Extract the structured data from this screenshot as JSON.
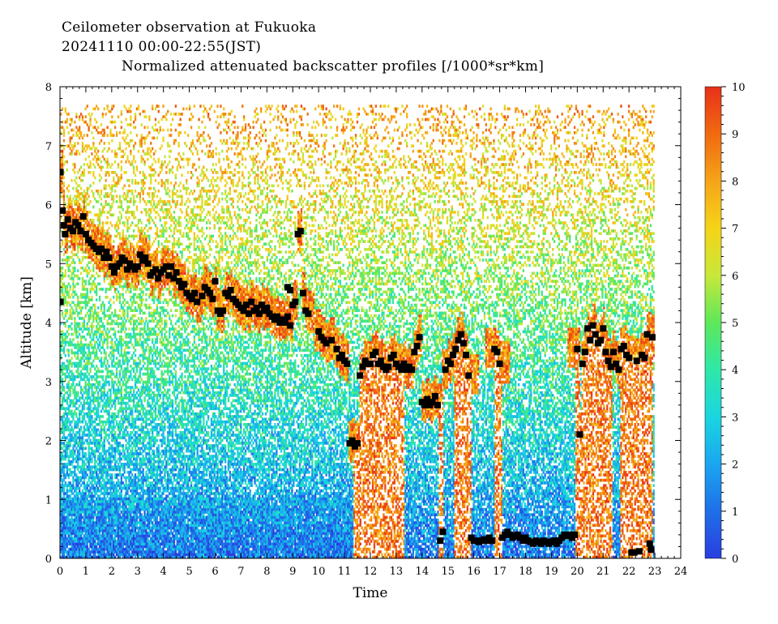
{
  "header": {
    "line1": "Ceilometer observation at Fukuoka",
    "line2": "20241110  00:00-22:55(JST)",
    "title": "Normalized attenuated backscatter profiles [/1000*sr*km]"
  },
  "chart_data": {
    "type": "heatmap",
    "title": "Normalized attenuated backscatter profiles [/1000*sr*km]",
    "xlabel": "Time",
    "ylabel": "Altitude [km]",
    "xlim": [
      0,
      24
    ],
    "ylim": [
      0,
      8
    ],
    "x_ticks": [
      "0",
      "1",
      "2",
      "3",
      "4",
      "5",
      "6",
      "7",
      "8",
      "9",
      "10",
      "11",
      "12",
      "13",
      "14",
      "15",
      "16",
      "17",
      "18",
      "19",
      "20",
      "21",
      "22",
      "23",
      "24"
    ],
    "y_ticks": [
      "0",
      "1",
      "2",
      "3",
      "4",
      "5",
      "6",
      "7",
      "8"
    ],
    "data_extent": {
      "time_end": 22.92,
      "altitude_top": 7.65
    },
    "colorbar": {
      "range": [
        0,
        10
      ],
      "ticks": [
        "0",
        "1",
        "2",
        "3",
        "4",
        "5",
        "6",
        "7",
        "8",
        "9",
        "10"
      ],
      "colors": [
        "#2a3ee0",
        "#1f6fe8",
        "#1aa6f0",
        "#19d6e0",
        "#2ee8a8",
        "#5de85a",
        "#c8e83a",
        "#f5d418",
        "#f5a418",
        "#f06a10",
        "#e8301a"
      ]
    },
    "cloud_base": {
      "marker": "black-square",
      "points": [
        [
          0.02,
          6.55
        ],
        [
          0.02,
          4.35
        ],
        [
          0.1,
          5.9
        ],
        [
          0.15,
          5.65
        ],
        [
          0.2,
          5.5
        ],
        [
          0.3,
          5.75
        ],
        [
          0.4,
          5.6
        ],
        [
          0.5,
          5.55
        ],
        [
          0.6,
          5.7
        ],
        [
          0.7,
          5.65
        ],
        [
          0.8,
          5.55
        ],
        [
          0.9,
          5.8
        ],
        [
          1.0,
          5.5
        ],
        [
          1.1,
          5.4
        ],
        [
          1.2,
          5.35
        ],
        [
          1.3,
          5.3
        ],
        [
          1.4,
          5.25
        ],
        [
          1.5,
          5.2
        ],
        [
          1.6,
          5.25
        ],
        [
          1.7,
          5.1
        ],
        [
          1.8,
          5.2
        ],
        [
          1.9,
          5.1
        ],
        [
          2.0,
          4.95
        ],
        [
          2.1,
          4.85
        ],
        [
          2.2,
          4.95
        ],
        [
          2.3,
          5.0
        ],
        [
          2.4,
          5.1
        ],
        [
          2.5,
          5.05
        ],
        [
          2.6,
          4.9
        ],
        [
          2.7,
          5.0
        ],
        [
          2.8,
          4.95
        ],
        [
          2.9,
          4.9
        ],
        [
          3.0,
          4.95
        ],
        [
          3.1,
          5.15
        ],
        [
          3.2,
          5.05
        ],
        [
          3.3,
          5.1
        ],
        [
          3.4,
          5.0
        ],
        [
          3.5,
          4.8
        ],
        [
          3.6,
          4.85
        ],
        [
          3.7,
          4.9
        ],
        [
          3.8,
          4.75
        ],
        [
          3.9,
          4.85
        ],
        [
          4.0,
          4.9
        ],
        [
          4.1,
          4.95
        ],
        [
          4.2,
          4.8
        ],
        [
          4.3,
          4.95
        ],
        [
          4.4,
          4.75
        ],
        [
          4.5,
          4.85
        ],
        [
          4.6,
          4.7
        ],
        [
          4.7,
          4.6
        ],
        [
          4.8,
          4.65
        ],
        [
          4.9,
          4.5
        ],
        [
          5.0,
          4.45
        ],
        [
          5.1,
          4.4
        ],
        [
          5.2,
          4.5
        ],
        [
          5.3,
          4.35
        ],
        [
          5.5,
          4.45
        ],
        [
          5.6,
          4.6
        ],
        [
          5.7,
          4.55
        ],
        [
          5.8,
          4.5
        ],
        [
          5.9,
          4.4
        ],
        [
          6.0,
          4.7
        ],
        [
          6.1,
          4.2
        ],
        [
          6.2,
          4.15
        ],
        [
          6.3,
          4.2
        ],
        [
          6.4,
          4.5
        ],
        [
          6.5,
          4.45
        ],
        [
          6.6,
          4.55
        ],
        [
          6.7,
          4.4
        ],
        [
          6.8,
          4.35
        ],
        [
          6.9,
          4.3
        ],
        [
          7.0,
          4.25
        ],
        [
          7.1,
          4.2
        ],
        [
          7.2,
          4.3
        ],
        [
          7.3,
          4.15
        ],
        [
          7.4,
          4.35
        ],
        [
          7.5,
          4.2
        ],
        [
          7.6,
          4.25
        ],
        [
          7.7,
          4.15
        ],
        [
          7.8,
          4.3
        ],
        [
          7.9,
          4.2
        ],
        [
          8.0,
          4.25
        ],
        [
          8.1,
          4.15
        ],
        [
          8.2,
          4.1
        ],
        [
          8.3,
          4.05
        ],
        [
          8.4,
          4.1
        ],
        [
          8.5,
          4.0
        ],
        [
          8.6,
          4.05
        ],
        [
          8.7,
          4.0
        ],
        [
          8.8,
          4.1
        ],
        [
          8.9,
          3.95
        ],
        [
          9.0,
          4.3
        ],
        [
          9.1,
          4.35
        ],
        [
          9.2,
          5.5
        ],
        [
          9.3,
          5.55
        ],
        [
          9.4,
          4.5
        ],
        [
          8.8,
          4.6
        ],
        [
          8.9,
          4.55
        ],
        [
          9.5,
          4.2
        ],
        [
          9.6,
          4.15
        ],
        [
          10.0,
          3.85
        ],
        [
          10.1,
          3.75
        ],
        [
          10.2,
          3.7
        ],
        [
          10.3,
          3.65
        ],
        [
          10.5,
          3.7
        ],
        [
          10.7,
          3.55
        ],
        [
          10.8,
          3.4
        ],
        [
          10.9,
          3.45
        ],
        [
          11.0,
          3.35
        ],
        [
          11.1,
          3.3
        ],
        [
          11.2,
          1.95
        ],
        [
          11.3,
          2.0
        ],
        [
          11.4,
          1.9
        ],
        [
          11.5,
          1.95
        ],
        [
          11.6,
          3.1
        ],
        [
          11.7,
          3.25
        ],
        [
          11.8,
          3.35
        ],
        [
          11.9,
          3.3
        ],
        [
          12.0,
          3.3
        ],
        [
          12.1,
          3.45
        ],
        [
          12.2,
          3.5
        ],
        [
          12.3,
          3.3
        ],
        [
          12.4,
          3.35
        ],
        [
          12.5,
          3.25
        ],
        [
          12.6,
          3.2
        ],
        [
          12.7,
          3.25
        ],
        [
          12.8,
          3.4
        ],
        [
          12.9,
          3.45
        ],
        [
          13.0,
          3.3
        ],
        [
          13.1,
          3.25
        ],
        [
          13.2,
          3.2
        ],
        [
          13.3,
          3.3
        ],
        [
          13.4,
          3.2
        ],
        [
          13.5,
          3.25
        ],
        [
          13.6,
          3.2
        ],
        [
          13.7,
          3.5
        ],
        [
          13.8,
          3.6
        ],
        [
          13.9,
          3.75
        ],
        [
          14.0,
          2.65
        ],
        [
          14.1,
          2.6
        ],
        [
          14.2,
          2.7
        ],
        [
          14.3,
          2.6
        ],
        [
          14.4,
          2.65
        ],
        [
          14.5,
          2.75
        ],
        [
          14.6,
          2.6
        ],
        [
          14.7,
          0.3
        ],
        [
          14.8,
          0.45
        ],
        [
          14.9,
          3.2
        ],
        [
          15.0,
          3.35
        ],
        [
          15.1,
          3.3
        ],
        [
          15.2,
          3.45
        ],
        [
          15.3,
          3.55
        ],
        [
          15.4,
          3.7
        ],
        [
          15.5,
          3.8
        ],
        [
          15.6,
          3.65
        ],
        [
          15.7,
          3.45
        ],
        [
          15.8,
          3.1
        ],
        [
          15.9,
          0.35
        ],
        [
          16.0,
          0.3
        ],
        [
          16.1,
          0.3
        ],
        [
          16.2,
          0.28
        ],
        [
          16.3,
          0.3
        ],
        [
          16.4,
          0.32
        ],
        [
          16.5,
          0.3
        ],
        [
          16.6,
          0.35
        ],
        [
          16.7,
          0.3
        ],
        [
          16.8,
          3.55
        ],
        [
          16.9,
          3.5
        ],
        [
          17.0,
          3.3
        ],
        [
          17.1,
          0.35
        ],
        [
          17.2,
          0.4
        ],
        [
          17.3,
          0.45
        ],
        [
          17.4,
          0.4
        ],
        [
          17.5,
          0.35
        ],
        [
          17.6,
          0.38
        ],
        [
          17.7,
          0.4
        ],
        [
          17.8,
          0.35
        ],
        [
          17.9,
          0.3
        ],
        [
          18.0,
          0.35
        ],
        [
          18.1,
          0.3
        ],
        [
          18.2,
          0.28
        ],
        [
          18.3,
          0.25
        ],
        [
          18.4,
          0.3
        ],
        [
          18.5,
          0.28
        ],
        [
          18.6,
          0.25
        ],
        [
          18.7,
          0.3
        ],
        [
          18.8,
          0.28
        ],
        [
          18.9,
          0.25
        ],
        [
          19.0,
          0.28
        ],
        [
          19.1,
          0.3
        ],
        [
          19.2,
          0.25
        ],
        [
          19.3,
          0.3
        ],
        [
          19.4,
          0.35
        ],
        [
          19.5,
          0.4
        ],
        [
          19.6,
          0.38
        ],
        [
          19.7,
          0.4
        ],
        [
          19.8,
          0.35
        ],
        [
          19.9,
          0.4
        ],
        [
          20.0,
          3.55
        ],
        [
          20.1,
          2.1
        ],
        [
          20.2,
          3.3
        ],
        [
          20.3,
          3.5
        ],
        [
          20.4,
          3.9
        ],
        [
          20.5,
          3.7
        ],
        [
          20.6,
          3.95
        ],
        [
          20.7,
          3.8
        ],
        [
          20.8,
          3.65
        ],
        [
          20.9,
          3.7
        ],
        [
          21.0,
          3.9
        ],
        [
          21.1,
          3.5
        ],
        [
          21.2,
          3.35
        ],
        [
          21.3,
          3.25
        ],
        [
          21.4,
          3.5
        ],
        [
          21.5,
          3.3
        ],
        [
          21.6,
          3.2
        ],
        [
          21.7,
          3.55
        ],
        [
          21.8,
          3.6
        ],
        [
          21.9,
          3.45
        ],
        [
          22.0,
          3.4
        ],
        [
          22.1,
          0.1
        ],
        [
          22.2,
          0.1
        ],
        [
          22.3,
          3.35
        ],
        [
          22.4,
          0.12
        ],
        [
          22.5,
          3.45
        ],
        [
          22.6,
          3.4
        ],
        [
          22.7,
          3.8
        ],
        [
          22.8,
          0.25
        ],
        [
          22.85,
          0.15
        ],
        [
          22.9,
          3.75
        ]
      ]
    }
  }
}
